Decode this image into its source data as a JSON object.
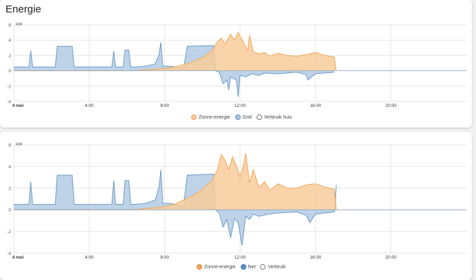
{
  "page": {
    "title": "Energie"
  },
  "colors": {
    "solar_fill": "#f8cb9a",
    "solar_line": "#f0a859",
    "grid_fill": "#a8c4e0",
    "grid_line": "#6b9bc9",
    "solar_swatch_2": "#f5a55a",
    "grid_swatch_2": "#5b8fc9",
    "gridline": "#e6e6e6",
    "axis_text": "#555555"
  },
  "chart_data": [
    {
      "type": "area",
      "title": "",
      "ylabel": "kW",
      "ylim": [
        -4,
        6
      ],
      "yticks": [
        "6",
        "4",
        "2",
        "0",
        "-2",
        "-4"
      ],
      "xlim": [
        0,
        24
      ],
      "xticks": [
        {
          "t": 0,
          "label": "4 mei"
        },
        {
          "t": 4,
          "label": "4:00"
        },
        {
          "t": 8,
          "label": "8:00"
        },
        {
          "t": 12,
          "label": "12:00"
        },
        {
          "t": 16,
          "label": "16:00"
        },
        {
          "t": 20,
          "label": "20:00"
        }
      ],
      "series": [
        {
          "name": "Zonne-energie",
          "values": [
            [
              0,
              0
            ],
            [
              6.4,
              0
            ],
            [
              6.8,
              0.1
            ],
            [
              7.5,
              0.2
            ],
            [
              8,
              0.3
            ],
            [
              8.5,
              0.5
            ],
            [
              9,
              0.8
            ],
            [
              9.5,
              1.2
            ],
            [
              10,
              1.7
            ],
            [
              10.5,
              2.6
            ],
            [
              10.8,
              3.8
            ],
            [
              11,
              4.3
            ],
            [
              11.2,
              3.5
            ],
            [
              11.5,
              4.8
            ],
            [
              11.7,
              4
            ],
            [
              11.9,
              5
            ],
            [
              12,
              4.5
            ],
            [
              12.2,
              3.6
            ],
            [
              12.4,
              2.6
            ],
            [
              12.5,
              4.6
            ],
            [
              12.7,
              2.5
            ],
            [
              13,
              2.2
            ],
            [
              13.3,
              2.4
            ],
            [
              13.6,
              1.9
            ],
            [
              14,
              2.3
            ],
            [
              14.5,
              2.0
            ],
            [
              15,
              1.9
            ],
            [
              15.5,
              2.1
            ],
            [
              16,
              2.4
            ],
            [
              16.5,
              2.0
            ],
            [
              17,
              1.8
            ],
            [
              17.1,
              0
            ]
          ]
        },
        {
          "name": "Grid",
          "values": [
            [
              0,
              0.5
            ],
            [
              0.8,
              0.5
            ],
            [
              0.9,
              2.6
            ],
            [
              1,
              0.5
            ],
            [
              2.2,
              0.5
            ],
            [
              2.3,
              3.2
            ],
            [
              3.1,
              3.2
            ],
            [
              3.2,
              0.5
            ],
            [
              5.2,
              0.5
            ],
            [
              5.3,
              2.6
            ],
            [
              5.4,
              0.5
            ],
            [
              5.8,
              0.5
            ],
            [
              5.9,
              2.7
            ],
            [
              6.1,
              2.7
            ],
            [
              6.2,
              0.5
            ],
            [
              6.5,
              0.5
            ],
            [
              7,
              0.6
            ],
            [
              7.5,
              0.9
            ],
            [
              7.7,
              2.1
            ],
            [
              7.8,
              3.7
            ],
            [
              7.9,
              0.6
            ],
            [
              8.2,
              0.6
            ],
            [
              8.6,
              0.5
            ],
            [
              9,
              0.3
            ],
            [
              9.2,
              3.2
            ],
            [
              10.6,
              3.3
            ],
            [
              10.7,
              0
            ],
            [
              10.9,
              -0.2
            ],
            [
              11.1,
              -1.7
            ],
            [
              11.3,
              -1.2
            ],
            [
              11.4,
              -2.5
            ],
            [
              11.5,
              -0.8
            ],
            [
              11.8,
              -1.2
            ],
            [
              11.9,
              -3.4
            ],
            [
              12,
              -0.6
            ],
            [
              12.3,
              -0.8
            ],
            [
              12.6,
              -0.4
            ],
            [
              13,
              -0.6
            ],
            [
              13.3,
              -0.3
            ],
            [
              14,
              -0.4
            ],
            [
              15,
              -0.2
            ],
            [
              15.5,
              -0.5
            ],
            [
              15.6,
              -1.2
            ],
            [
              16,
              -0.4
            ],
            [
              17,
              -0.2
            ]
          ]
        }
      ],
      "legend": [
        "Zonne-energie",
        "Grid",
        "Verbruik huis"
      ],
      "legend_position": "bottom-center"
    },
    {
      "type": "area",
      "title": "",
      "ylabel": "kW",
      "ylim": [
        -4,
        6
      ],
      "yticks": [
        "6",
        "4",
        "2",
        "0",
        "-2",
        "-4"
      ],
      "xlim": [
        0,
        24
      ],
      "xticks": [
        {
          "t": 0,
          "label": "4 mei"
        },
        {
          "t": 4,
          "label": "4:00"
        },
        {
          "t": 8,
          "label": "8:00"
        },
        {
          "t": 12,
          "label": "12:00"
        },
        {
          "t": 16,
          "label": "16:00"
        },
        {
          "t": 20,
          "label": "20:00"
        }
      ],
      "series": [
        {
          "name": "Zonne-energie",
          "values": [
            [
              0,
              0
            ],
            [
              6.4,
              0
            ],
            [
              6.8,
              0.1
            ],
            [
              7.5,
              0.2
            ],
            [
              8,
              0.3
            ],
            [
              8.5,
              0.5
            ],
            [
              9,
              0.9
            ],
            [
              9.5,
              1.3
            ],
            [
              10,
              1.9
            ],
            [
              10.5,
              2.7
            ],
            [
              10.8,
              3.7
            ],
            [
              11,
              5.1
            ],
            [
              11.2,
              4.6
            ],
            [
              11.4,
              3.7
            ],
            [
              11.6,
              4.9
            ],
            [
              11.8,
              4.1
            ],
            [
              12,
              3.0
            ],
            [
              12.2,
              4.3
            ],
            [
              12.3,
              5.2
            ],
            [
              12.5,
              2.5
            ],
            [
              12.7,
              3.7
            ],
            [
              13,
              2.1
            ],
            [
              13.3,
              2.6
            ],
            [
              13.6,
              1.8
            ],
            [
              14,
              2.4
            ],
            [
              14.5,
              2.0
            ],
            [
              15,
              2.0
            ],
            [
              15.5,
              2.3
            ],
            [
              16,
              2.4
            ],
            [
              16.5,
              2.1
            ],
            [
              17,
              1.9
            ],
            [
              17.1,
              0
            ]
          ]
        },
        {
          "name": "Net",
          "values": [
            [
              0,
              0.5
            ],
            [
              0.8,
              0.5
            ],
            [
              0.9,
              2.6
            ],
            [
              1,
              0.5
            ],
            [
              2.2,
              0.5
            ],
            [
              2.3,
              3.2
            ],
            [
              3.1,
              3.2
            ],
            [
              3.2,
              0.5
            ],
            [
              5.2,
              0.5
            ],
            [
              5.3,
              2.7
            ],
            [
              5.4,
              0.5
            ],
            [
              5.8,
              0.5
            ],
            [
              5.9,
              2.7
            ],
            [
              6.1,
              2.7
            ],
            [
              6.2,
              0.5
            ],
            [
              6.5,
              0.5
            ],
            [
              7,
              0.6
            ],
            [
              7.5,
              0.9
            ],
            [
              7.7,
              2.1
            ],
            [
              7.8,
              3.7
            ],
            [
              7.9,
              0.6
            ],
            [
              8.2,
              0.6
            ],
            [
              8.6,
              0.5
            ],
            [
              9,
              0.3
            ],
            [
              9.2,
              3.2
            ],
            [
              10.6,
              3.3
            ],
            [
              10.7,
              0
            ],
            [
              10.9,
              -0.3
            ],
            [
              11.1,
              -1.6
            ],
            [
              11.3,
              -0.9
            ],
            [
              11.5,
              -2.6
            ],
            [
              11.7,
              -0.8
            ],
            [
              11.9,
              -1.2
            ],
            [
              12.1,
              -3.3
            ],
            [
              12.3,
              -0.6
            ],
            [
              12.5,
              -0.9
            ],
            [
              12.7,
              -0.4
            ],
            [
              13,
              -0.6
            ],
            [
              13.5,
              -0.4
            ],
            [
              14,
              -0.3
            ],
            [
              15,
              -0.2
            ],
            [
              15.5,
              -0.5
            ],
            [
              15.7,
              -1.2
            ],
            [
              16,
              -0.4
            ],
            [
              17,
              -0.2
            ],
            [
              17.1,
              2.3
            ]
          ]
        }
      ],
      "legend": [
        "Zonne-energie",
        "Net",
        "Verbruik"
      ],
      "legend_position": "bottom-center"
    }
  ]
}
